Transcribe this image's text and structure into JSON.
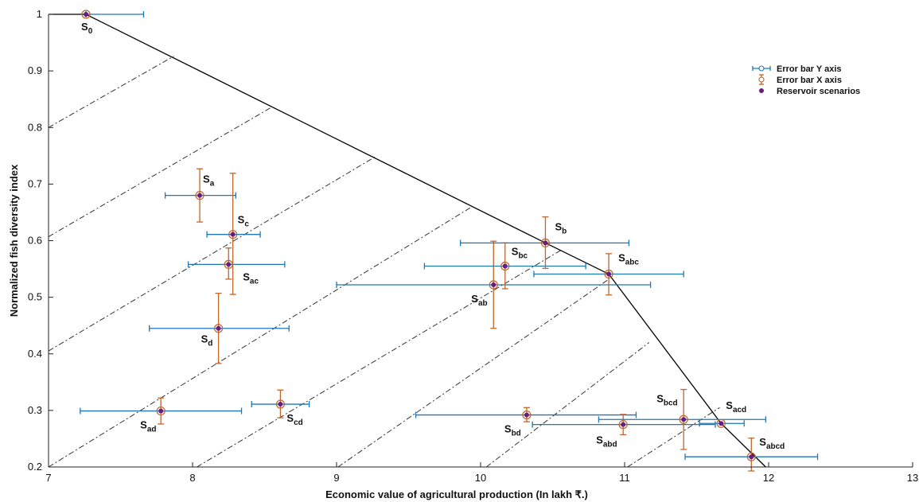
{
  "chart_data": {
    "type": "scatter",
    "title": "",
    "xlabel": "Economic value of agricultural production (In lakh ₹.)",
    "ylabel": "Normalized fish diversity index",
    "xlim": [
      7,
      13
    ],
    "ylim": [
      0.2,
      1.0
    ],
    "x_ticks": [
      "7",
      "8",
      "9",
      "10",
      "11",
      "12",
      "13"
    ],
    "y_ticks": [
      "0.2",
      "0.3",
      "0.4",
      "0.5",
      "0.6",
      "0.7",
      "0.8",
      "0.9",
      "1"
    ],
    "grid": false,
    "legend_position": "top-right",
    "colors": {
      "error_x_axis_color": "#1f77b4",
      "error_y_axis_color": "#c0652b",
      "marker_color": "#6a1d7c",
      "line_color": "#000000"
    },
    "legend": [
      {
        "label": "Error bar Y axis",
        "kind": "errbar-h"
      },
      {
        "label": "Error bar X axis",
        "kind": "errbar-v"
      },
      {
        "label": "Reservoir scenarios",
        "kind": "point"
      }
    ],
    "points": [
      {
        "label": "S",
        "sub": "0",
        "x": 7.26,
        "y": 1.0,
        "xerr": [
          7.26,
          7.66
        ],
        "yerr": null
      },
      {
        "label": "S",
        "sub": "a",
        "x": 8.05,
        "y": 0.68,
        "xerr": [
          7.81,
          8.3
        ],
        "yerr": [
          0.633,
          0.727
        ]
      },
      {
        "label": "S",
        "sub": "c",
        "x": 8.28,
        "y": 0.611,
        "xerr": [
          8.1,
          8.47
        ],
        "yerr": [
          0.505,
          0.719
        ]
      },
      {
        "label": "S",
        "sub": "ac",
        "x": 8.25,
        "y": 0.558,
        "xerr": [
          7.97,
          8.64
        ],
        "yerr": [
          0.532,
          0.587
        ]
      },
      {
        "label": "S",
        "sub": "d",
        "x": 8.18,
        "y": 0.445,
        "xerr": [
          7.7,
          8.67
        ],
        "yerr": [
          0.383,
          0.507
        ]
      },
      {
        "label": "S",
        "sub": "ad",
        "x": 7.78,
        "y": 0.299,
        "xerr": [
          7.22,
          8.34
        ],
        "yerr": [
          0.276,
          0.322
        ]
      },
      {
        "label": "S",
        "sub": "cd",
        "x": 8.61,
        "y": 0.311,
        "xerr": [
          8.41,
          8.81
        ],
        "yerr": [
          0.287,
          0.336
        ]
      },
      {
        "label": "S",
        "sub": "ab",
        "x": 10.09,
        "y": 0.522,
        "xerr": [
          9.0,
          11.18
        ],
        "yerr": [
          0.445,
          0.599
        ]
      },
      {
        "label": "S",
        "sub": "bc",
        "x": 10.17,
        "y": 0.555,
        "xerr": [
          9.61,
          10.73
        ],
        "yerr": [
          0.515,
          0.596
        ]
      },
      {
        "label": "S",
        "sub": "b",
        "x": 10.45,
        "y": 0.596,
        "xerr": [
          9.86,
          11.03
        ],
        "yerr": [
          0.551,
          0.642
        ]
      },
      {
        "label": "S",
        "sub": "abc",
        "x": 10.89,
        "y": 0.541,
        "xerr": [
          10.37,
          11.41
        ],
        "yerr": [
          0.504,
          0.577
        ]
      },
      {
        "label": "S",
        "sub": "bd",
        "x": 10.32,
        "y": 0.292,
        "xerr": [
          9.55,
          11.08
        ],
        "yerr": [
          0.28,
          0.305
        ]
      },
      {
        "label": "S",
        "sub": "abd",
        "x": 10.99,
        "y": 0.275,
        "xerr": [
          10.36,
          11.63
        ],
        "yerr": [
          0.257,
          0.293
        ]
      },
      {
        "label": "S",
        "sub": "bcd",
        "x": 11.41,
        "y": 0.284,
        "xerr": [
          10.82,
          11.98
        ],
        "yerr": [
          0.231,
          0.337
        ]
      },
      {
        "label": "S",
        "sub": "acd",
        "x": 11.67,
        "y": 0.277,
        "xerr": [
          11.52,
          11.83
        ],
        "yerr": null
      },
      {
        "label": "S",
        "sub": "abcd",
        "x": 11.88,
        "y": 0.218,
        "xerr": [
          11.42,
          12.34
        ],
        "yerr": [
          0.193,
          0.251
        ]
      }
    ],
    "frontier_line": [
      [
        7,
        1.0
      ],
      [
        7.26,
        1.0
      ],
      [
        10.45,
        0.596
      ],
      [
        10.89,
        0.541
      ],
      [
        11.67,
        0.277
      ],
      [
        11.98,
        0.2
      ]
    ],
    "dash_dot_lines": [
      {
        "from": [
          7,
          0.8
        ],
        "to": [
          7.87,
          0.926
        ]
      },
      {
        "from": [
          7,
          0.607
        ],
        "to": [
          8.55,
          0.836
        ]
      },
      {
        "from": [
          7,
          0.405
        ],
        "to": [
          9.28,
          0.75
        ]
      },
      {
        "from": [
          7,
          0.2
        ],
        "to": [
          9.94,
          0.66
        ]
      },
      {
        "from": [
          8.03,
          0.2
        ],
        "to": [
          10.57,
          0.585
        ]
      },
      {
        "from": [
          9.01,
          0.2
        ],
        "to": [
          10.88,
          0.53
        ]
      },
      {
        "from": [
          10.04,
          0.2
        ],
        "to": [
          11.17,
          0.42
        ]
      },
      {
        "from": [
          11.02,
          0.2
        ],
        "to": [
          11.66,
          0.305
        ]
      }
    ]
  }
}
